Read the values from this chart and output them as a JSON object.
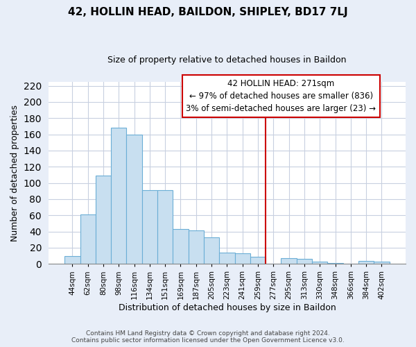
{
  "title": "42, HOLLIN HEAD, BAILDON, SHIPLEY, BD17 7LJ",
  "subtitle": "Size of property relative to detached houses in Baildon",
  "xlabel": "Distribution of detached houses by size in Baildon",
  "ylabel": "Number of detached properties",
  "categories": [
    "44sqm",
    "62sqm",
    "80sqm",
    "98sqm",
    "116sqm",
    "134sqm",
    "151sqm",
    "169sqm",
    "187sqm",
    "205sqm",
    "223sqm",
    "241sqm",
    "259sqm",
    "277sqm",
    "295sqm",
    "313sqm",
    "330sqm",
    "348sqm",
    "366sqm",
    "384sqm",
    "402sqm"
  ],
  "values": [
    10,
    61,
    109,
    168,
    160,
    91,
    91,
    43,
    41,
    33,
    14,
    13,
    9,
    0,
    7,
    6,
    3,
    1,
    0,
    4,
    3
  ],
  "bar_color": "#c8dff0",
  "bar_edge_color": "#6baed6",
  "vline_color": "#cc0000",
  "annotation_title": "42 HOLLIN HEAD: 271sqm",
  "annotation_line1": "← 97% of detached houses are smaller (836)",
  "annotation_line2": "3% of semi-detached houses are larger (23) →",
  "annotation_box_color": "#ffffff",
  "annotation_box_edge_color": "#cc0000",
  "ylim": [
    0,
    225
  ],
  "yticks": [
    0,
    20,
    40,
    60,
    80,
    100,
    120,
    140,
    160,
    180,
    200,
    220
  ],
  "footer1": "Contains HM Land Registry data © Crown copyright and database right 2024.",
  "footer2": "Contains public sector information licensed under the Open Government Licence v3.0.",
  "plot_bg_color": "#ffffff",
  "fig_bg_color": "#e8eef8",
  "grid_color": "#c8d0e0",
  "title_fontsize": 11,
  "subtitle_fontsize": 9,
  "ylabel_fontsize": 9,
  "xlabel_fontsize": 9,
  "tick_fontsize": 7.5,
  "annot_fontsize": 8.5,
  "footer_fontsize": 6.5
}
